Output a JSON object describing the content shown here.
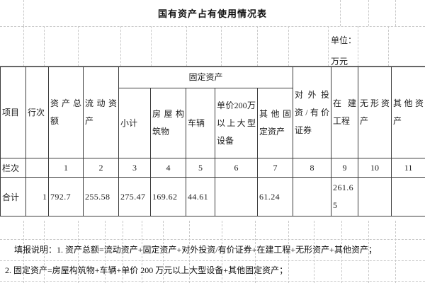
{
  "title": "国有资产占有使用情况表",
  "unit_label": "单位：万元",
  "table": {
    "headers": {
      "item": "项目",
      "line_no": "行次",
      "total_assets": "资产总额",
      "current_assets": "流动资产",
      "fixed_assets": "固定资产",
      "subtotal": "小计",
      "buildings": "房屋构筑物",
      "vehicles": "车辆",
      "large_equipment": "单价200万以上大型设备",
      "other_fixed_assets": "其他固定资产",
      "external_investment": "对外投资/有价证券",
      "construction_in_progress": "在建工程",
      "intangible_assets": "无形资产",
      "other_assets": "其他资产"
    },
    "column_index": {
      "label": "栏次",
      "numbers": [
        "1",
        "2",
        "3",
        "4",
        "5",
        "6",
        "7",
        "8",
        "9",
        "10",
        "11"
      ]
    },
    "total_row": {
      "label": "合计",
      "line_no": "1",
      "values": [
        "792.7",
        "255.58",
        "275.47",
        "169.62",
        "44.61",
        "",
        "61.24",
        "",
        "261.65",
        "",
        ""
      ]
    }
  },
  "notes": {
    "line1": "填报说明：1. 资产总额=流动资产+固定资产+对外投资/有价证券+在建工程+无形资产+其他资产；",
    "line2": "2. 固定资产=房屋构筑物+车辆+单价 200 万元以上大型设备+其他固定资产；"
  }
}
